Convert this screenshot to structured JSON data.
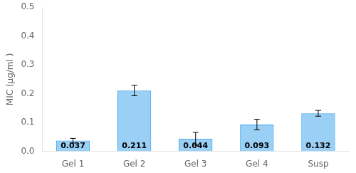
{
  "chart_data": {
    "type": "bar",
    "categories": [
      "Gel 1",
      "Gel 2",
      "Gel 3",
      "Gel 4",
      "Susp"
    ],
    "values": [
      0.037,
      0.211,
      0.044,
      0.093,
      0.132
    ],
    "errors": [
      0.008,
      0.018,
      0.022,
      0.018,
      0.01
    ],
    "ylabel": "MIC (μg/ml )",
    "ylim": [
      0,
      0.5
    ],
    "yticks": [
      {
        "value": 0,
        "label": "0.0"
      },
      0.1,
      0.2,
      0.3,
      0.4,
      0.5
    ],
    "data_labels": true,
    "grid": false
  }
}
